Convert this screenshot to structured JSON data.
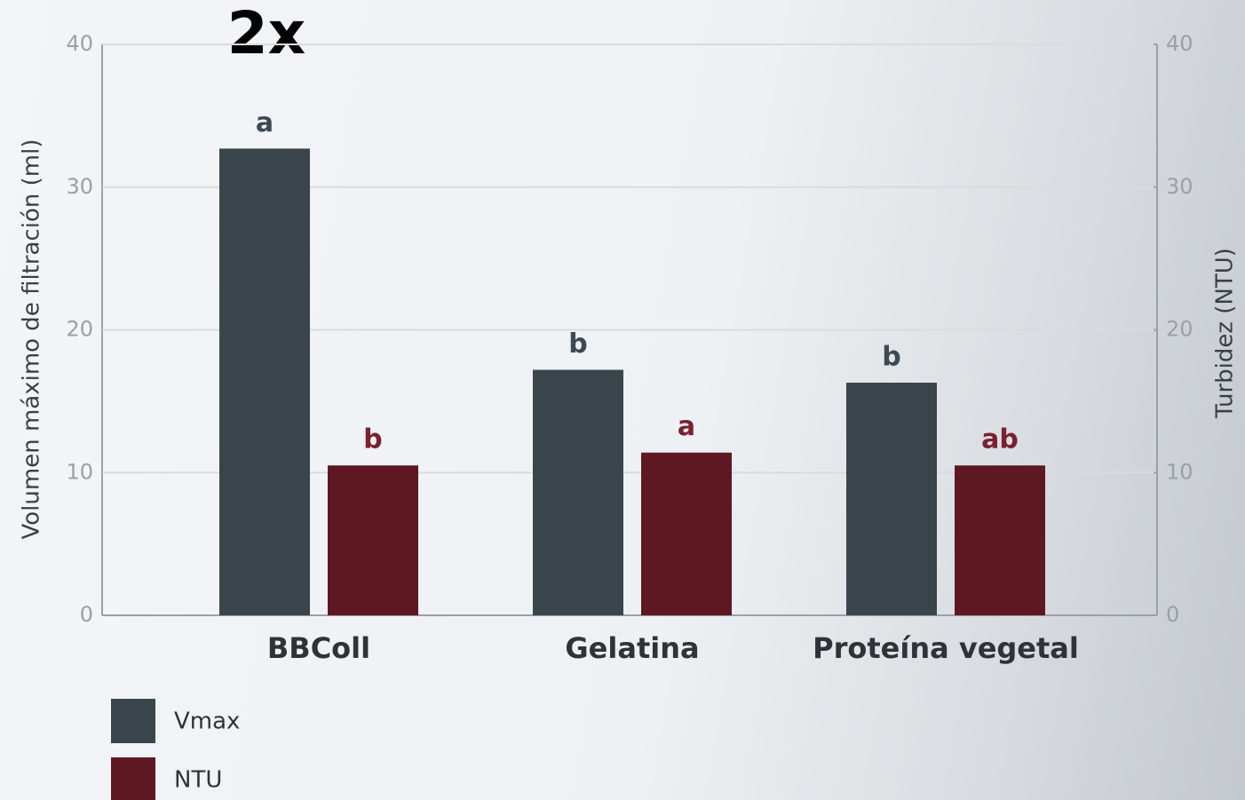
{
  "chart_data": {
    "type": "bar",
    "annotation": "2x",
    "y_label": "Volumen máximo de filtración (ml)",
    "y2_label": "Turbidez (NTU)",
    "categories": [
      "BBColl",
      "Gelatina",
      "Proteína vegetal"
    ],
    "series": [
      {
        "name": "Vmax",
        "color": "#3a454b",
        "values": [
          32.7,
          17.2,
          16.3
        ],
        "letters": [
          "a",
          "b",
          "b"
        ]
      },
      {
        "name": "NTU",
        "color": "#5e1822",
        "axis": "y2",
        "values": [
          10.5,
          11.4,
          10.5
        ],
        "letters": [
          "b",
          "a",
          "ab"
        ]
      }
    ],
    "ylim": [
      0,
      40
    ],
    "yticks": [
      0,
      10,
      20,
      30,
      40
    ],
    "y2lim": [
      0,
      40
    ],
    "y2ticks": [
      0,
      10,
      20,
      30,
      40
    ],
    "grid": true
  }
}
